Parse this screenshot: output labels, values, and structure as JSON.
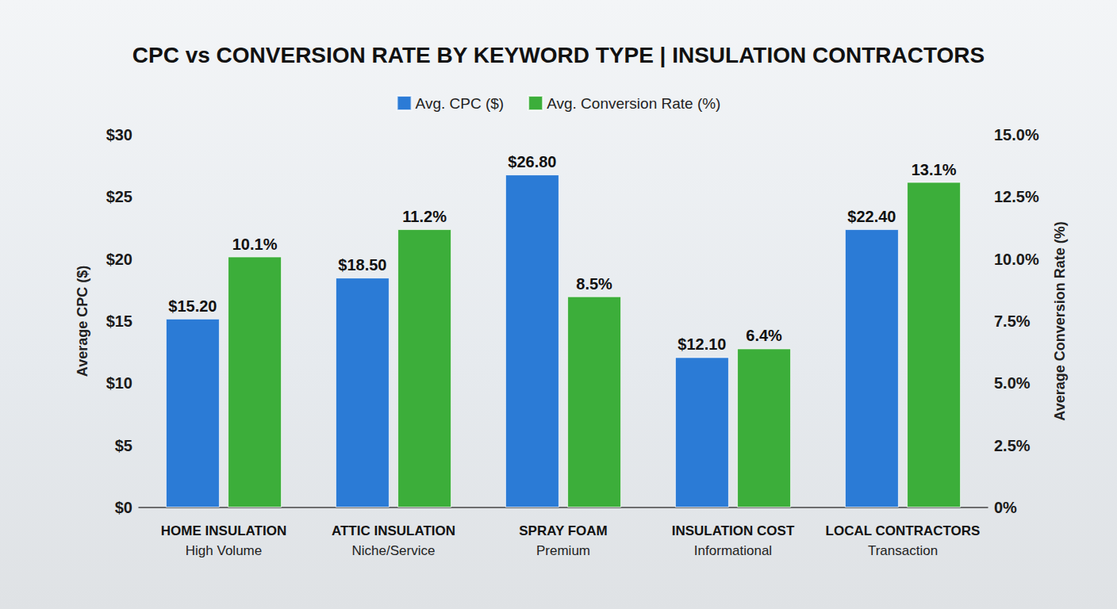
{
  "chart_data": {
    "type": "bar",
    "title": "CPC vs CONVERSION RATE BY KEYWORD TYPE | INSULATION CONTRACTORS",
    "categories": [
      "HOME INSULATION\nHigh Volume",
      "ATTIC INSULATION\nNiche/Service",
      "SPRAY FOAM\nPremium",
      "INSULATION COST\nInformational",
      "LOCAL CONTRACTORS\nTransaction"
    ],
    "y_label": "Average CPC ($)",
    "y2_label": "Average Conversion Rate (%)",
    "ylim": [
      0,
      30
    ],
    "yticks": [
      {
        "value": 0,
        "label": "$0"
      },
      {
        "value": 5,
        "label": "$5"
      },
      {
        "value": 10,
        "label": "$10"
      },
      {
        "value": 15,
        "label": "$15"
      },
      {
        "value": 20,
        "label": "$20"
      },
      {
        "value": 25,
        "label": "$25"
      },
      {
        "value": 30,
        "label": "$30"
      }
    ],
    "y2lim": [
      0,
      15
    ],
    "y2ticks": [
      {
        "value": 0,
        "label": "0%"
      },
      {
        "value": 2.5,
        "label": "2.5%"
      },
      {
        "value": 5,
        "label": "5.0%"
      },
      {
        "value": 7.5,
        "label": "7.5%"
      },
      {
        "value": 10,
        "label": "10.0%"
      },
      {
        "value": 12.5,
        "label": "12.5%"
      },
      {
        "value": 15,
        "label": "15.0%"
      }
    ],
    "grid": false,
    "legend": "top",
    "data_labels": true,
    "series": [
      {
        "name": "Avg. CPC ($)",
        "color": "#2b7bd6",
        "values": [
          15.2,
          18.5,
          26.8,
          12.1,
          22.4
        ],
        "value_labels": [
          "$15.20",
          "$18.50",
          "$26.80",
          "$12.10",
          "$22.40"
        ]
      },
      {
        "name": "Avg. Conversion Rate (%)",
        "color": "#3cae3a",
        "axis": "y2",
        "values": [
          10.1,
          11.2,
          8.5,
          6.4,
          13.1
        ],
        "value_labels": [
          "10.1%",
          "11.2%",
          "8.5%",
          "6.4%",
          "13.1%"
        ]
      }
    ]
  }
}
